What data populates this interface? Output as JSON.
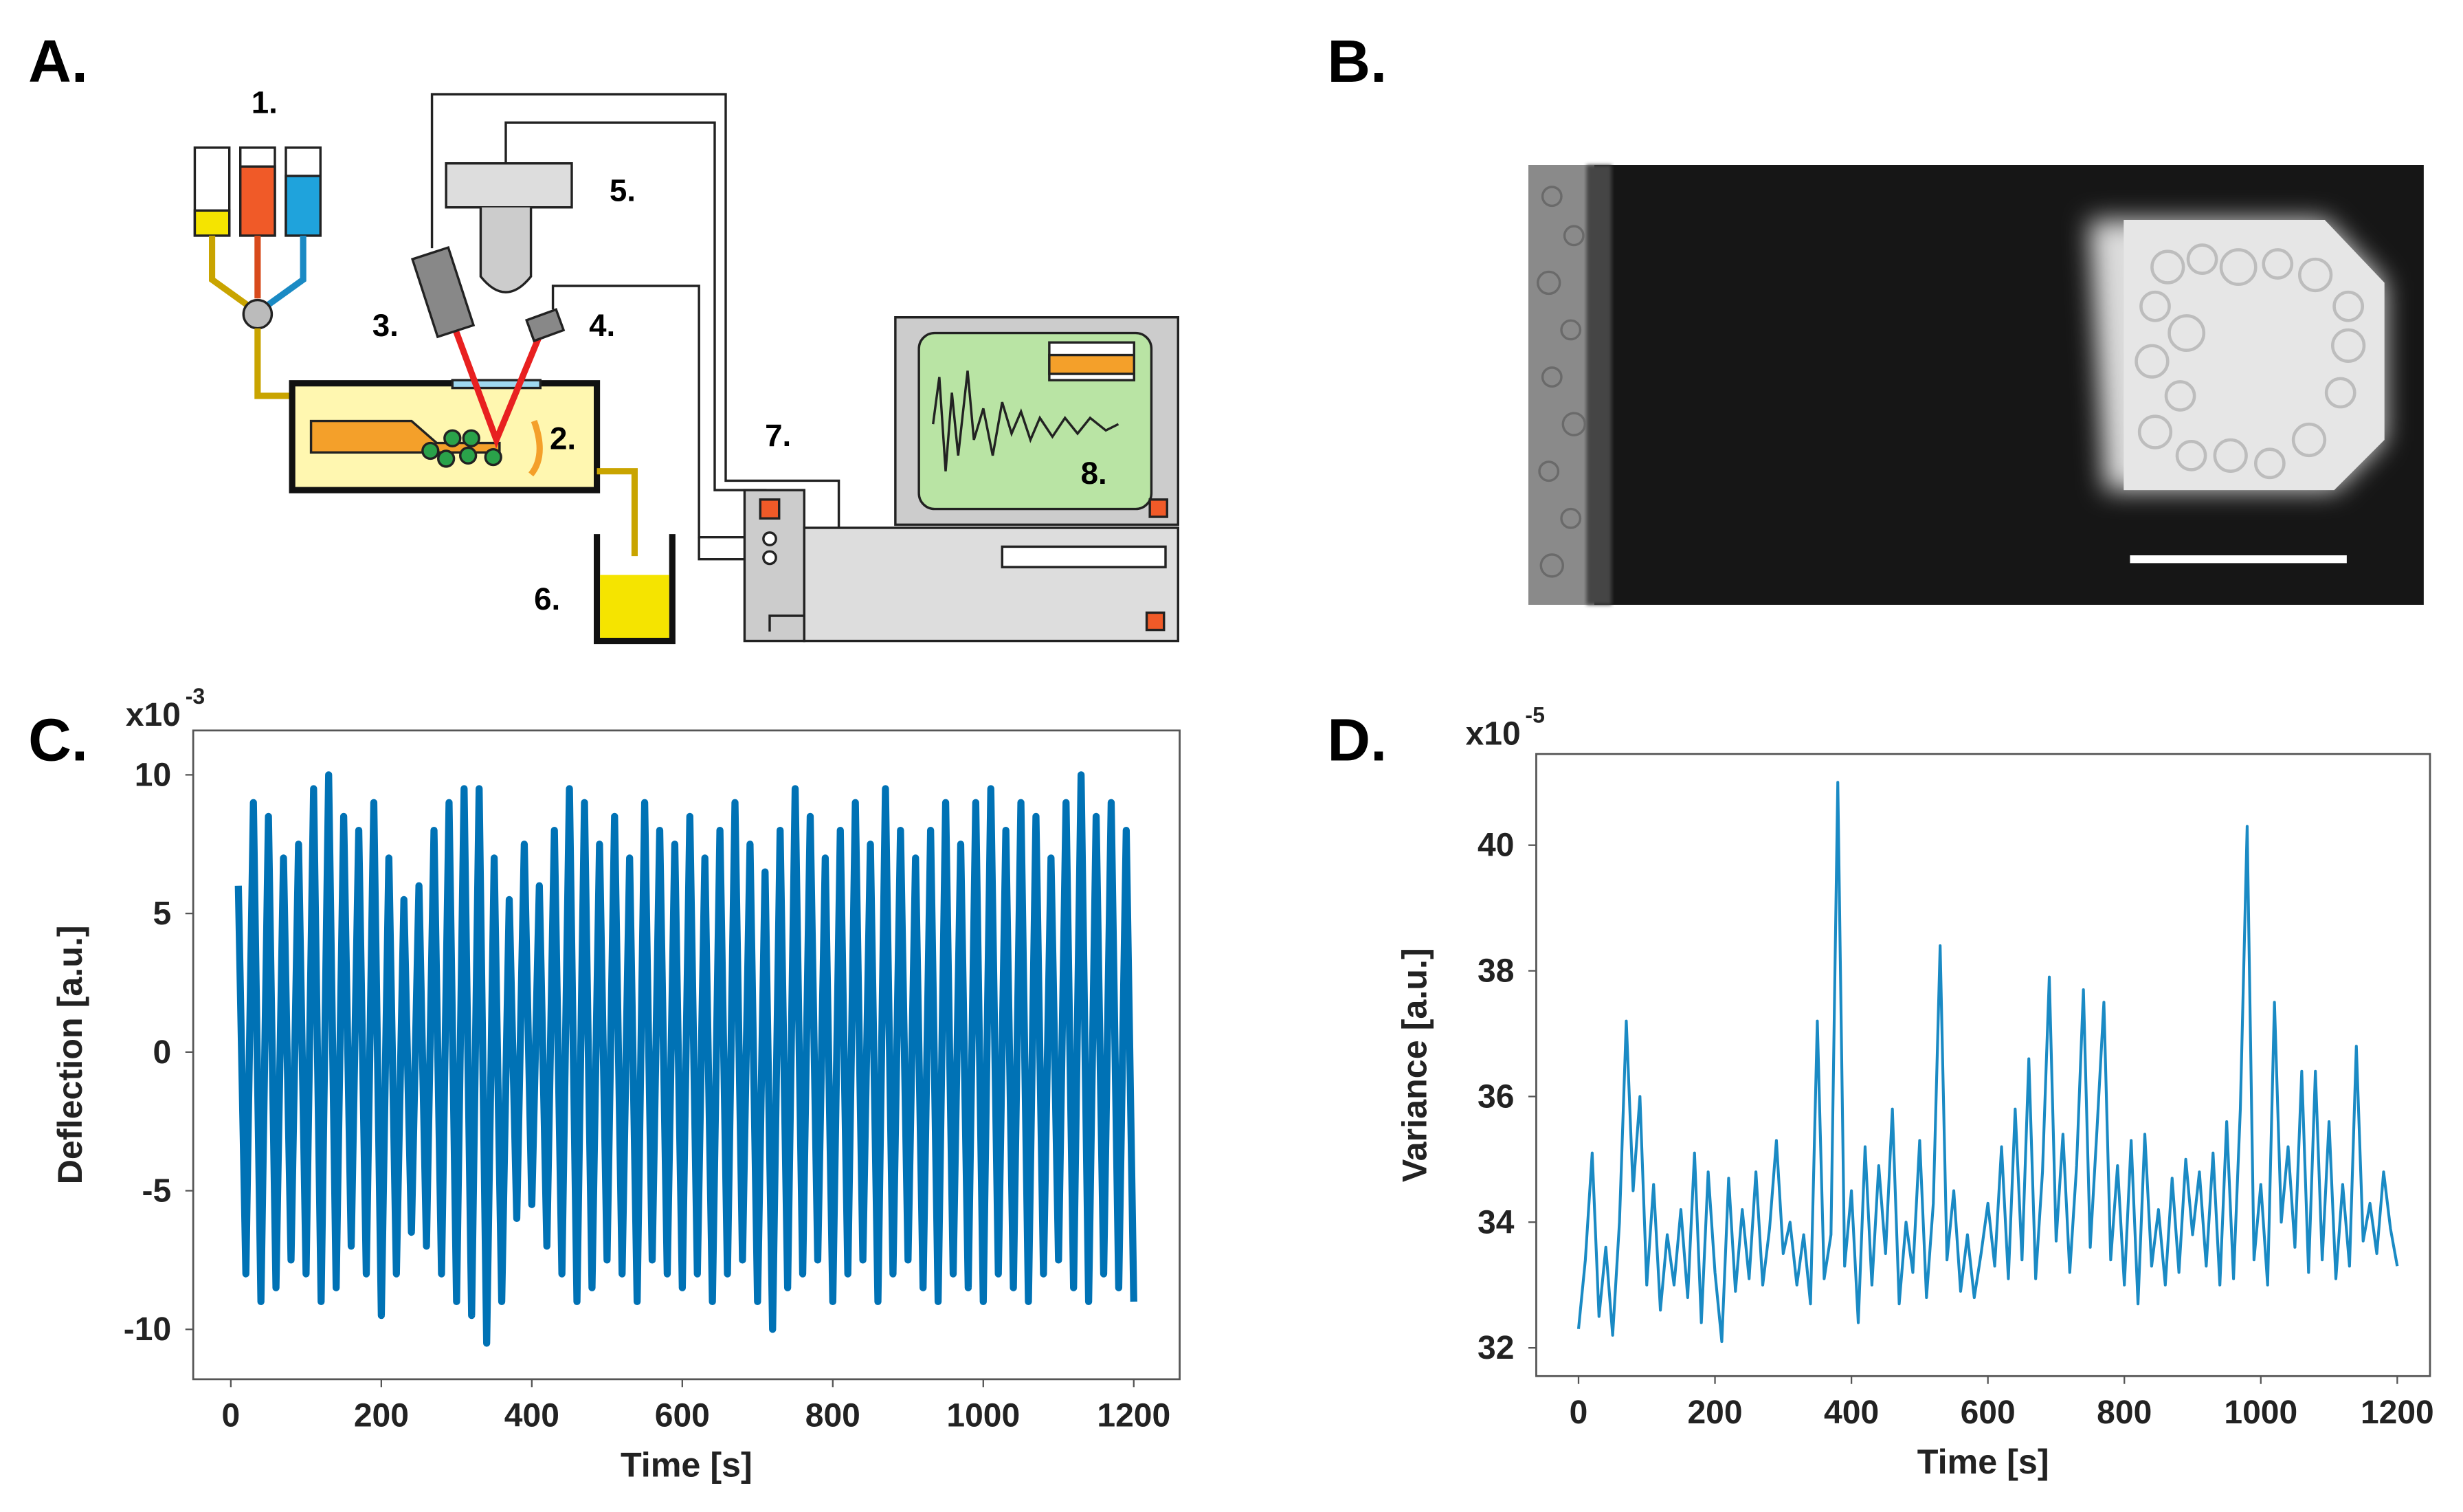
{
  "panels": {
    "a": "A.",
    "b": "B.",
    "c": "C.",
    "d": "D."
  },
  "diagram": {
    "labels": [
      "1.",
      "2.",
      "3.",
      "4.",
      "5.",
      "6.",
      "7.",
      "8."
    ]
  },
  "chart_data": [
    {
      "type": "line",
      "x_label": "Time [s]",
      "y_label": "Deflection [a.u.]",
      "y_multiplier": {
        "base": "x10",
        "exponent": "-3"
      },
      "color": "#0072b5",
      "x": [
        10,
        20,
        30,
        40,
        50,
        60,
        70,
        80,
        90,
        100,
        110,
        120,
        130,
        140,
        150,
        160,
        170,
        180,
        190,
        200,
        210,
        220,
        230,
        240,
        250,
        260,
        270,
        280,
        290,
        300,
        310,
        320,
        330,
        340,
        350,
        360,
        370,
        380,
        390,
        400,
        410,
        420,
        430,
        440,
        450,
        460,
        470,
        480,
        490,
        500,
        510,
        520,
        530,
        540,
        550,
        560,
        570,
        580,
        590,
        600,
        610,
        620,
        630,
        640,
        650,
        660,
        670,
        680,
        690,
        700,
        710,
        720,
        730,
        740,
        750,
        760,
        770,
        780,
        790,
        800,
        810,
        820,
        830,
        840,
        850,
        860,
        870,
        880,
        890,
        900,
        910,
        920,
        930,
        940,
        950,
        960,
        970,
        980,
        990,
        1000,
        1010,
        1020,
        1030,
        1040,
        1050,
        1060,
        1070,
        1080,
        1090,
        1100,
        1110,
        1120,
        1130,
        1140,
        1150,
        1160,
        1170,
        1180,
        1190,
        1200
      ],
      "values": [
        6,
        -8,
        9,
        -9,
        8.5,
        -8.5,
        7,
        -7.5,
        7.5,
        -8,
        9.5,
        -9,
        10,
        -8.5,
        8.5,
        -7,
        8,
        -8,
        9,
        -9.5,
        7,
        -8,
        5.5,
        -6.5,
        6,
        -7,
        8,
        -8,
        9,
        -9,
        9.5,
        -9.5,
        9.5,
        -10.5,
        7,
        -9,
        5.5,
        -6,
        7.5,
        -5.5,
        6,
        -7,
        8,
        -8,
        9.5,
        -9,
        9,
        -8.5,
        7.5,
        -7.5,
        8.5,
        -8,
        7,
        -9,
        9,
        -7.5,
        8,
        -8,
        7.5,
        -8.5,
        8.5,
        -8,
        7,
        -9,
        8,
        -8,
        9,
        -7.5,
        7.5,
        -9,
        6.5,
        -10,
        8,
        -8.5,
        9.5,
        -8,
        8.5,
        -7.5,
        7,
        -9,
        8,
        -8,
        9,
        -7.5,
        7.5,
        -9,
        9.5,
        -8,
        8,
        -7.5,
        7,
        -8.5,
        8,
        -9,
        9,
        -8,
        7.5,
        -8.5,
        9,
        -9,
        9.5,
        -8,
        8,
        -8.5,
        9,
        -9,
        8.5,
        -8,
        7,
        -7.5,
        9,
        -8.5,
        10,
        -9,
        8.5,
        -8,
        9,
        -8.5,
        8,
        -9
      ],
      "xlim": [
        -50,
        1261
      ],
      "ylim": [
        -11.8,
        11.6
      ],
      "xticks": [
        0,
        200,
        400,
        600,
        800,
        1000,
        1200
      ],
      "yticks": [
        10,
        5,
        0,
        -5,
        -10
      ]
    },
    {
      "type": "line",
      "x_label": "Time [s]",
      "y_label": "Variance [a.u.]",
      "y_multiplier": {
        "base": "x10",
        "exponent": "-5"
      },
      "color": "#1a8ac4",
      "x": [
        0,
        10,
        20,
        30,
        40,
        50,
        60,
        70,
        80,
        90,
        100,
        110,
        120,
        130,
        140,
        150,
        160,
        170,
        180,
        190,
        200,
        210,
        220,
        230,
        240,
        250,
        260,
        270,
        280,
        290,
        300,
        310,
        320,
        330,
        340,
        350,
        360,
        370,
        380,
        390,
        400,
        410,
        420,
        430,
        440,
        450,
        460,
        470,
        480,
        490,
        500,
        510,
        520,
        530,
        540,
        550,
        560,
        570,
        580,
        590,
        600,
        610,
        620,
        630,
        640,
        650,
        660,
        670,
        680,
        690,
        700,
        710,
        720,
        730,
        740,
        750,
        760,
        770,
        780,
        790,
        800,
        810,
        820,
        830,
        840,
        850,
        860,
        870,
        880,
        890,
        900,
        910,
        920,
        930,
        940,
        950,
        960,
        970,
        980,
        990,
        1000,
        1010,
        1020,
        1030,
        1040,
        1050,
        1060,
        1070,
        1080,
        1090,
        1100,
        1110,
        1120,
        1130,
        1140,
        1150,
        1160,
        1170,
        1180,
        1190,
        1200
      ],
      "values": [
        32.3,
        33.4,
        35.1,
        32.5,
        33.6,
        32.2,
        34,
        37.2,
        34.5,
        36,
        33,
        34.6,
        32.6,
        33.8,
        33,
        34.2,
        32.8,
        35.1,
        32.4,
        34.8,
        33.2,
        32.1,
        34.7,
        32.9,
        34.2,
        33.1,
        34.8,
        33,
        33.9,
        35.3,
        33.5,
        34,
        33,
        33.8,
        32.7,
        37.2,
        33.1,
        33.8,
        41,
        33.3,
        34.5,
        32.4,
        35.2,
        33,
        34.9,
        33.5,
        35.8,
        32.7,
        34,
        33.2,
        35.3,
        32.8,
        34.3,
        38.4,
        33.4,
        34.5,
        32.9,
        33.8,
        32.8,
        33.5,
        34.3,
        33.3,
        35.2,
        33.1,
        35.8,
        33.4,
        36.6,
        33.1,
        34.8,
        37.9,
        33.7,
        35.4,
        33.2,
        34.9,
        37.7,
        33.6,
        35.5,
        37.5,
        33.4,
        34.9,
        33,
        35.3,
        32.7,
        35.4,
        33.3,
        34.2,
        33,
        34.7,
        33.2,
        35,
        33.8,
        34.8,
        33.3,
        35.1,
        33,
        35.6,
        33.1,
        35.8,
        40.3,
        33.4,
        34.6,
        33,
        37.5,
        34,
        35.2,
        33.6,
        36.4,
        33.2,
        36.4,
        33.4,
        35.6,
        33.1,
        34.6,
        33.3,
        36.8,
        33.7,
        34.3,
        33.5,
        34.8,
        33.9,
        33.3
      ],
      "xlim": [
        -62,
        1248
      ],
      "ylim": [
        31.55,
        41.45
      ],
      "xticks": [
        0,
        200,
        400,
        600,
        800,
        1000,
        1200
      ],
      "yticks": [
        32,
        34,
        36,
        38,
        40
      ]
    }
  ]
}
